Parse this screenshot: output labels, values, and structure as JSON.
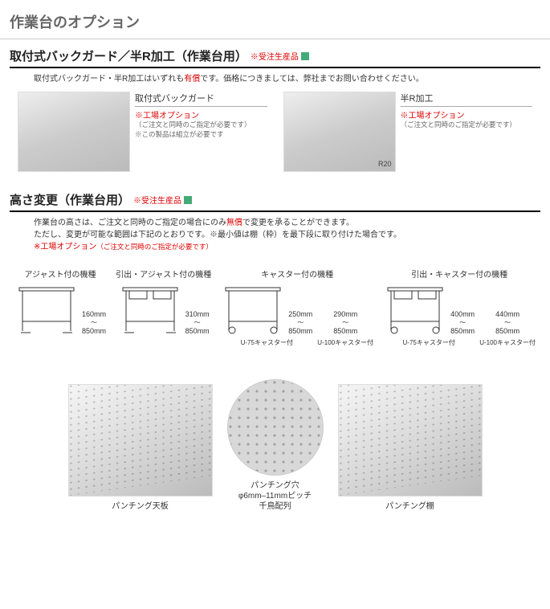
{
  "title": "作業台のオプション",
  "sec1": {
    "title": "取付式バックガード／半R加工（作業台用）",
    "badge": "※受注生産品",
    "lead_pre": "取付式バックガード・半R加工はいずれも",
    "lead_em": "有償",
    "lead_post": "です。価格につきましては、弊社までお問い合わせください。",
    "left": {
      "name": "取付式バックガード",
      "factory": "※工場オプション",
      "note1": "（ご注文と同時のご指定が必要です）",
      "note2": "※この製品は組立が必要です"
    },
    "right": {
      "name": "半R加工",
      "factory": "※工場オプション",
      "note1": "（ご注文と同時のご指定が必要です）",
      "corner": "R20"
    }
  },
  "sec2": {
    "title": "高さ変更（作業台用）",
    "badge": "※受注生産品",
    "lead1_pre": "作業台の高さは、ご注文と同時のご指定の場合にのみ",
    "lead1_em": "無償",
    "lead1_post": "で変更を承ることができます。",
    "lead2": "ただし、変更が可能な範囲は下記のとおりです。※最小値は棚（枠）を最下段に取り付けた場合です。",
    "lead3_em": "※工場オプション",
    "lead3_note": "（ご注文と同時のご指定が必要です）",
    "variants": [
      {
        "title": "アジャスト付の機種",
        "cols": [
          {
            "min": "160mm",
            "max": "850mm"
          }
        ]
      },
      {
        "title": "引出・アジャスト付の機種",
        "cols": [
          {
            "min": "310mm",
            "max": "850mm"
          }
        ]
      },
      {
        "title": "キャスター付の機種",
        "cols": [
          {
            "min": "250mm",
            "max": "850mm",
            "sub": "U-75キャスター付"
          },
          {
            "min": "290mm",
            "max": "850mm",
            "sub": "U-100キャスター付"
          }
        ]
      },
      {
        "title": "引出・キャスター付の機種",
        "cols": [
          {
            "min": "400mm",
            "max": "850mm",
            "sub": "U-75キャスター付"
          },
          {
            "min": "440mm",
            "max": "850mm",
            "sub": "U-100キャスター付"
          }
        ]
      }
    ]
  },
  "punch": {
    "items": [
      {
        "cap": "パンチング天板"
      },
      {
        "cap": "パンチング穴",
        "cap2": "φ6mm–11mmピッチ",
        "cap3": "千鳥配列"
      },
      {
        "cap": "パンチング棚"
      }
    ]
  }
}
